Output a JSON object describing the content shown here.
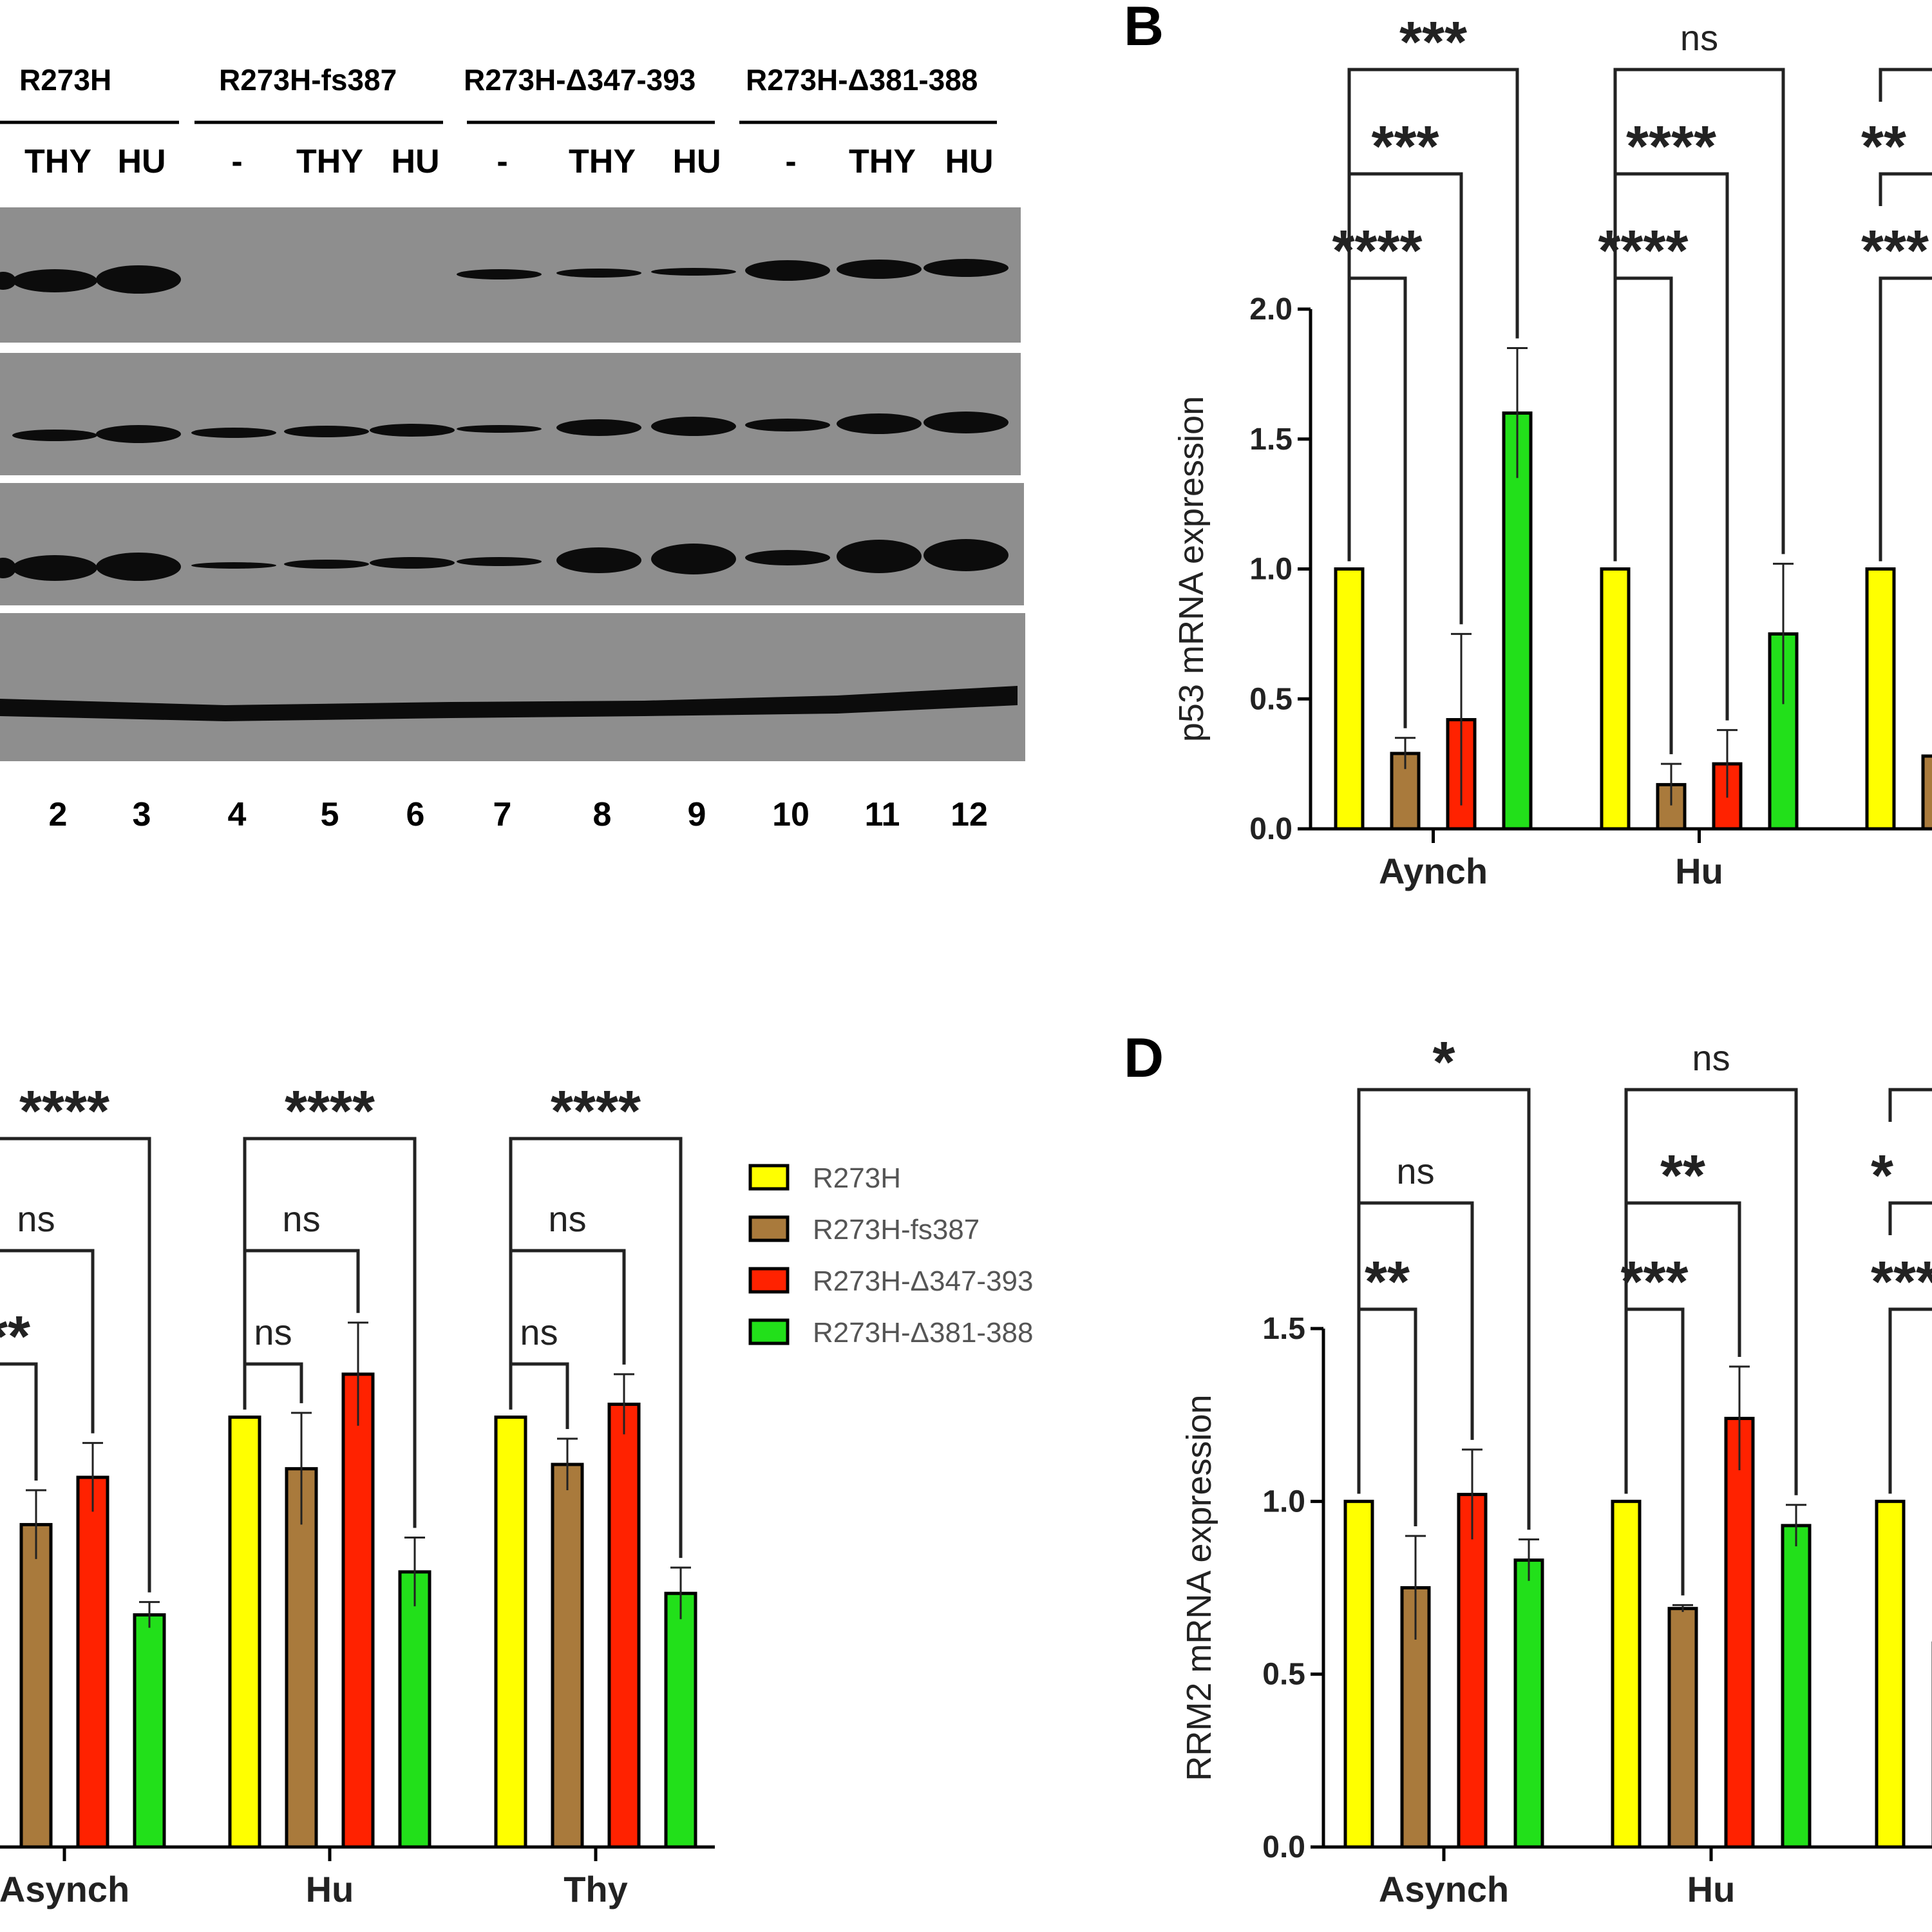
{
  "colors": {
    "R273H": "#ffff00",
    "R273H-fs387": "#a97a3c",
    "R273H-Δ347-393": "#ff2200",
    "R273H-Δ381-388": "#22e01a",
    "blot_bg": "#8e8e8e",
    "band": "#0c0c0c"
  },
  "blot": {
    "group_headers": [
      "R273H",
      "R273H-fs387",
      "R273H-Δ347-393",
      "R273H-Δ381-388"
    ],
    "lane_treatments": [
      "THY",
      "HU",
      "-",
      "THY",
      "HU",
      "-",
      "THY",
      "HU",
      "-",
      "THY",
      "HU"
    ],
    "lane_numbers": [
      "2",
      "3",
      "4",
      "5",
      "6",
      "7",
      "8",
      "9",
      "10",
      "11",
      "12"
    ]
  },
  "panel_B": {
    "letter": "B"
  },
  "panel_D": {
    "letter": "D"
  },
  "legend": {
    "items": [
      {
        "label": "R273H",
        "color": "#ffff00"
      },
      {
        "label": "R273H-fs387",
        "color": "#a97a3c"
      },
      {
        "label": "R273H-Δ347-393",
        "color": "#ff2200"
      },
      {
        "label": "R273H-Δ381-388",
        "color": "#22e01a"
      }
    ]
  },
  "chart_data": [
    {
      "id": "B",
      "type": "bar",
      "ylabel": "p53 mRNA expression",
      "ylim": [
        0,
        2.0
      ],
      "yticks": [
        "0.0",
        "0.5",
        "1.0",
        "1.5",
        "2.0"
      ],
      "categories": [
        "Aynch",
        "Hu"
      ],
      "series": [
        {
          "name": "R273H",
          "values": [
            1.0,
            1.0
          ],
          "errors": [
            0,
            0
          ]
        },
        {
          "name": "R273H-fs387",
          "values": [
            0.29,
            0.17
          ],
          "errors": [
            0.06,
            0.08
          ]
        },
        {
          "name": "R273H-Δ347-393",
          "values": [
            0.42,
            0.25
          ],
          "errors": [
            0.33,
            0.13
          ]
        },
        {
          "name": "R273H-Δ381-388",
          "values": [
            1.6,
            0.75
          ],
          "errors": [
            0.25,
            0.27
          ]
        }
      ],
      "significance": [
        [
          "****",
          "***",
          "***"
        ],
        [
          "****",
          "****",
          "ns"
        ]
      ],
      "partial_significance": [
        "***",
        "**"
      ]
    },
    {
      "id": "C",
      "type": "bar",
      "categories": [
        "Asynch",
        "Hu",
        "Thy"
      ],
      "series": [
        {
          "name": "R273H",
          "values": [
            null,
            1.0,
            1.0
          ],
          "errors": [
            0,
            0,
            0
          ]
        },
        {
          "name": "R273H-fs387",
          "values": [
            0.75,
            0.88,
            0.89
          ],
          "errors": [
            0.08,
            0.13,
            0.06
          ]
        },
        {
          "name": "R273H-Δ347-393",
          "values": [
            0.86,
            1.1,
            1.03
          ],
          "errors": [
            0.08,
            0.12,
            0.07
          ]
        },
        {
          "name": "R273H-Δ381-388",
          "values": [
            0.54,
            0.64,
            0.59
          ],
          "errors": [
            0.03,
            0.08,
            0.06
          ]
        }
      ],
      "significance": [
        [
          "**",
          "ns",
          "****"
        ],
        [
          "ns",
          "ns",
          "****"
        ],
        [
          "ns",
          "ns",
          "****"
        ]
      ]
    },
    {
      "id": "D",
      "type": "bar",
      "ylabel": "RRM2 mRNA expression",
      "ylim": [
        0,
        1.5
      ],
      "yticks": [
        "0.0",
        "0.5",
        "1.0",
        "1.5"
      ],
      "categories": [
        "Asynch",
        "Hu"
      ],
      "series": [
        {
          "name": "R273H",
          "values": [
            1.0,
            1.0
          ],
          "errors": [
            0,
            0
          ]
        },
        {
          "name": "R273H-fs387",
          "values": [
            0.75,
            0.69
          ],
          "errors": [
            0.15,
            0.01
          ]
        },
        {
          "name": "R273H-Δ347-393",
          "values": [
            1.02,
            1.24
          ],
          "errors": [
            0.13,
            0.15
          ]
        },
        {
          "name": "R273H-Δ381-388",
          "values": [
            0.83,
            0.93
          ],
          "errors": [
            0.06,
            0.06
          ]
        }
      ],
      "significance": [
        [
          "**",
          "ns",
          "*"
        ],
        [
          "***",
          "**",
          "ns"
        ]
      ],
      "partial_significance": [
        "***",
        "*"
      ]
    }
  ]
}
